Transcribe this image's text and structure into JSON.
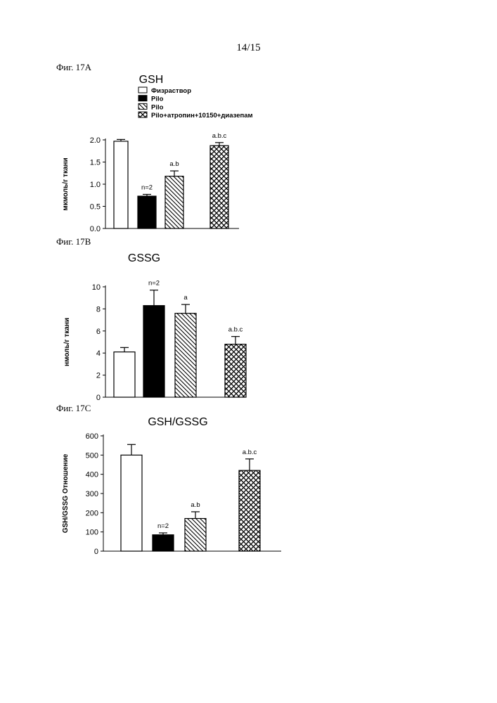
{
  "page_number": "14/15",
  "chart_data": [
    {
      "fig_label": "Фиг. 17A",
      "type": "bar",
      "title": "GSH",
      "ylabel": "мкмоль/г ткани",
      "xlabel": "",
      "ylim": [
        0,
        2.0
      ],
      "yticks": [
        "0.0",
        "0.5",
        "1.0",
        "1.5",
        "2.0"
      ],
      "legend": [
        "Физраствор",
        "Pilo",
        "Pilo",
        "Pilo+атропин+10150+диазепам"
      ],
      "bars": [
        {
          "value": 1.97,
          "error": 0.04,
          "fill": "white",
          "annotation": ""
        },
        {
          "value": 0.73,
          "error": 0.04,
          "fill": "black",
          "annotation": "n=2"
        },
        {
          "value": 1.18,
          "error": 0.12,
          "fill": "hatch",
          "annotation": "a.b"
        },
        {
          "value": 1.87,
          "error": 0.07,
          "fill": "cross",
          "annotation": "a.b.c"
        }
      ]
    },
    {
      "fig_label": "Фиг. 17B",
      "type": "bar",
      "title": "GSSG",
      "ylabel": "нмоль/г ткани",
      "xlabel": "",
      "ylim": [
        0,
        10
      ],
      "yticks": [
        "0",
        "2",
        "4",
        "6",
        "8",
        "10"
      ],
      "legend": [],
      "bars": [
        {
          "value": 4.1,
          "error": 0.4,
          "fill": "white",
          "annotation": ""
        },
        {
          "value": 8.3,
          "error": 1.4,
          "fill": "black",
          "annotation": "n=2"
        },
        {
          "value": 7.6,
          "error": 0.8,
          "fill": "hatch",
          "annotation": "a"
        },
        {
          "value": 4.8,
          "error": 0.7,
          "fill": "cross",
          "annotation": "a.b.c"
        }
      ]
    },
    {
      "fig_label": "Фиг. 17C",
      "type": "bar",
      "title": "GSH/GSSG",
      "ylabel": "GSH/GSSG Отношение",
      "xlabel": "",
      "ylim": [
        0,
        600
      ],
      "yticks": [
        "0",
        "100",
        "200",
        "300",
        "400",
        "500",
        "600"
      ],
      "legend": [],
      "bars": [
        {
          "value": 500,
          "error": 55,
          "fill": "white",
          "annotation": ""
        },
        {
          "value": 85,
          "error": 10,
          "fill": "black",
          "annotation": "n=2"
        },
        {
          "value": 170,
          "error": 35,
          "fill": "hatch",
          "annotation": "a.b"
        },
        {
          "value": 420,
          "error": 60,
          "fill": "cross",
          "annotation": "a.b.c"
        }
      ]
    }
  ]
}
